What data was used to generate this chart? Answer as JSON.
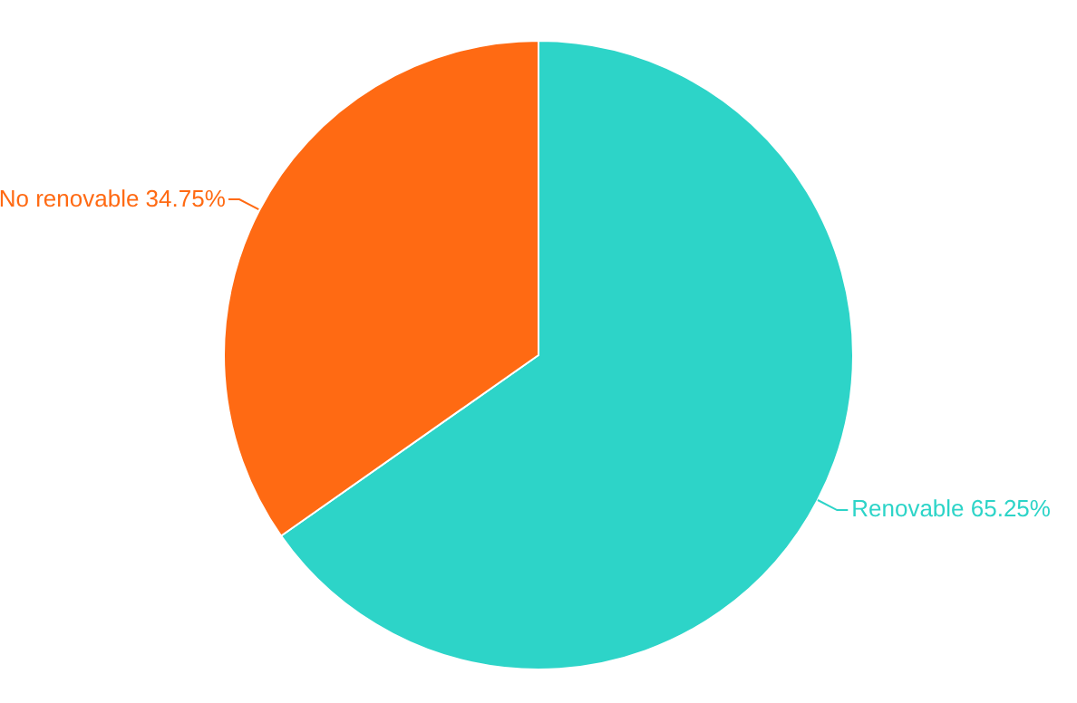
{
  "chart_data": {
    "type": "pie",
    "categories": [
      "Renovable",
      "No renovable"
    ],
    "values": [
      65.25,
      34.75
    ],
    "value_labels": [
      "65.25%",
      "34.75%"
    ],
    "colors": [
      "#2dd4c8",
      "#ff6a13"
    ],
    "legend": false
  }
}
